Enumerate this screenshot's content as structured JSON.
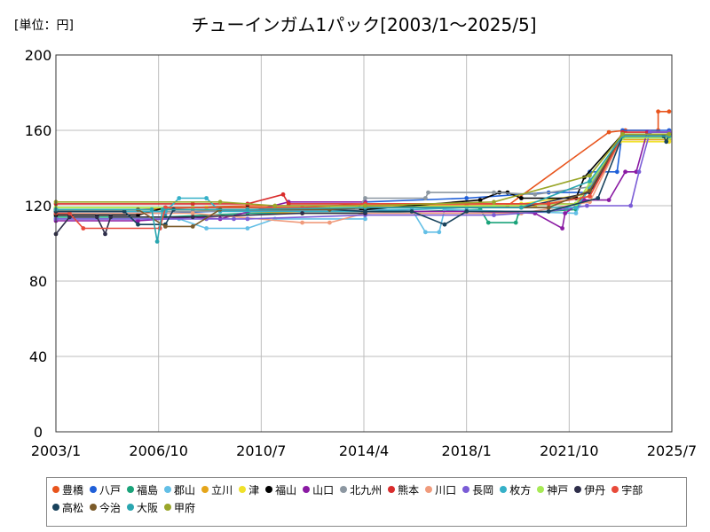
{
  "unit_label": "[単位：円]",
  "title": "チューインガム1パック[2003/1～2025/5]",
  "chart_data": {
    "type": "line",
    "title": "チューインガム1パック[2003/1～2025/5]",
    "ylabel": "[単位：円]",
    "xlim": [
      2003.0,
      2025.5
    ],
    "ylim": [
      0,
      200
    ],
    "yticks": [
      0,
      40,
      80,
      120,
      160,
      200
    ],
    "xtick_labels": [
      "2003/1",
      "2006/10",
      "2010/7",
      "2014/4",
      "2018/1",
      "2021/10",
      "2025/7"
    ],
    "grid": true,
    "legend_position": "bottom",
    "series": [
      {
        "name": "豊橋",
        "color": "#e8541c",
        "points": [
          [
            2003.0,
            118
          ],
          [
            2006.0,
            118
          ],
          [
            2010.0,
            120
          ],
          [
            2014.3,
            120
          ],
          [
            2018.0,
            120
          ],
          [
            2019.5,
            120
          ],
          [
            2023.2,
            159
          ],
          [
            2023.8,
            160
          ],
          [
            2025.0,
            160
          ],
          [
            2025.0,
            170
          ],
          [
            2025.4,
            170
          ]
        ]
      },
      {
        "name": "八戸",
        "color": "#1f5fd8",
        "points": [
          [
            2003.0,
            116
          ],
          [
            2007.0,
            116
          ],
          [
            2010.5,
            118
          ],
          [
            2014.3,
            118
          ],
          [
            2014.3,
            122
          ],
          [
            2018.0,
            124
          ],
          [
            2021.0,
            127
          ],
          [
            2022.5,
            127
          ],
          [
            2022.5,
            138
          ],
          [
            2023.5,
            138
          ],
          [
            2023.7,
            160
          ],
          [
            2025.4,
            160
          ]
        ]
      },
      {
        "name": "福島",
        "color": "#1aa37a",
        "points": [
          [
            2003.0,
            114
          ],
          [
            2007.0,
            114
          ],
          [
            2010.0,
            116
          ],
          [
            2014.3,
            116
          ],
          [
            2018.5,
            118
          ],
          [
            2018.8,
            111
          ],
          [
            2019.8,
            111
          ],
          [
            2019.9,
            116
          ],
          [
            2022.0,
            118
          ],
          [
            2022.6,
            133
          ],
          [
            2023.7,
            158
          ],
          [
            2025.4,
            158
          ]
        ]
      },
      {
        "name": "郡山",
        "color": "#63bfe6",
        "points": [
          [
            2003.0,
            113
          ],
          [
            2007.5,
            113
          ],
          [
            2008.5,
            108
          ],
          [
            2010.0,
            108
          ],
          [
            2011.0,
            113
          ],
          [
            2014.3,
            113
          ],
          [
            2014.3,
            118
          ],
          [
            2016.0,
            118
          ],
          [
            2016.5,
            106
          ],
          [
            2017.0,
            106
          ],
          [
            2017.2,
            118
          ],
          [
            2022.0,
            116
          ],
          [
            2022.5,
            131
          ],
          [
            2023.7,
            157
          ],
          [
            2025.4,
            157
          ]
        ]
      },
      {
        "name": "立川",
        "color": "#e5a51a",
        "points": [
          [
            2003.0,
            118
          ],
          [
            2008.0,
            118
          ],
          [
            2012.0,
            116
          ],
          [
            2014.2,
            116
          ],
          [
            2014.3,
            120
          ],
          [
            2020.5,
            120
          ],
          [
            2022.5,
            125
          ],
          [
            2023.6,
            155
          ],
          [
            2025.4,
            155
          ]
        ]
      },
      {
        "name": "津",
        "color": "#f0e12a",
        "points": [
          [
            2003.0,
            119
          ],
          [
            2008.5,
            119
          ],
          [
            2014.0,
            119
          ],
          [
            2014.3,
            121
          ],
          [
            2020.0,
            121
          ],
          [
            2022.3,
            126
          ],
          [
            2023.6,
            154
          ],
          [
            2025.4,
            154
          ]
        ]
      },
      {
        "name": "福山",
        "color": "#000000",
        "points": [
          [
            2003.0,
            115
          ],
          [
            2006.0,
            115
          ],
          [
            2007.0,
            119
          ],
          [
            2010.0,
            119
          ],
          [
            2014.3,
            118
          ],
          [
            2018.5,
            123
          ],
          [
            2019.2,
            127
          ],
          [
            2019.5,
            127
          ],
          [
            2020.0,
            124
          ],
          [
            2022.0,
            124
          ],
          [
            2022.3,
            135
          ],
          [
            2023.7,
            158
          ],
          [
            2025.4,
            158
          ]
        ]
      },
      {
        "name": "山口",
        "color": "#8a1aa3",
        "points": [
          [
            2003.0,
            112
          ],
          [
            2006.0,
            112
          ],
          [
            2008.0,
            114
          ],
          [
            2009.0,
            113
          ],
          [
            2011.5,
            122
          ],
          [
            2014.3,
            122
          ],
          [
            2014.3,
            117
          ],
          [
            2018.0,
            117
          ],
          [
            2020.5,
            116
          ],
          [
            2021.5,
            108
          ],
          [
            2021.6,
            116
          ],
          [
            2022.3,
            123
          ],
          [
            2023.2,
            123
          ],
          [
            2023.8,
            138
          ],
          [
            2024.2,
            138
          ],
          [
            2024.6,
            159
          ],
          [
            2025.4,
            159
          ]
        ]
      },
      {
        "name": "北九州",
        "color": "#8c97a1",
        "points": [
          [
            2003.0,
            117
          ],
          [
            2008.0,
            117
          ],
          [
            2014.0,
            118
          ],
          [
            2014.3,
            124
          ],
          [
            2016.5,
            124
          ],
          [
            2016.6,
            127
          ],
          [
            2019.0,
            127
          ],
          [
            2020.5,
            126
          ],
          [
            2022.5,
            130
          ],
          [
            2023.7,
            157
          ],
          [
            2025.4,
            157
          ]
        ]
      },
      {
        "name": "熊本",
        "color": "#d92c2c",
        "points": [
          [
            2003.0,
            121
          ],
          [
            2008.0,
            121
          ],
          [
            2010.0,
            121
          ],
          [
            2011.3,
            126
          ],
          [
            2011.5,
            121
          ],
          [
            2014.3,
            121
          ],
          [
            2019.0,
            121
          ],
          [
            2022.0,
            121
          ],
          [
            2022.6,
            130
          ],
          [
            2023.7,
            159
          ],
          [
            2025.4,
            159
          ]
        ]
      },
      {
        "name": "川口",
        "color": "#f09b7c",
        "points": [
          [
            2003.0,
            116
          ],
          [
            2008.0,
            116
          ],
          [
            2012.0,
            111
          ],
          [
            2013.0,
            111
          ],
          [
            2014.3,
            116
          ],
          [
            2020.0,
            116
          ],
          [
            2022.5,
            122
          ],
          [
            2023.7,
            157
          ],
          [
            2025.4,
            157
          ]
        ]
      },
      {
        "name": "長岡",
        "color": "#7a5cd6",
        "points": [
          [
            2003.0,
            113
          ],
          [
            2008.5,
            113
          ],
          [
            2009.5,
            113
          ],
          [
            2010.0,
            113
          ],
          [
            2014.3,
            115
          ],
          [
            2019.0,
            115
          ],
          [
            2021.0,
            117
          ],
          [
            2022.4,
            120
          ],
          [
            2024.0,
            120
          ],
          [
            2024.3,
            138
          ],
          [
            2024.7,
            159
          ],
          [
            2025.4,
            159
          ]
        ]
      },
      {
        "name": "枚方",
        "color": "#35b0c8",
        "points": [
          [
            2003.0,
            117
          ],
          [
            2007.0,
            117
          ],
          [
            2007.5,
            124
          ],
          [
            2008.5,
            124
          ],
          [
            2009.0,
            117
          ],
          [
            2014.3,
            117
          ],
          [
            2018.0,
            119
          ],
          [
            2022.0,
            119
          ],
          [
            2022.5,
            129
          ],
          [
            2023.7,
            156
          ],
          [
            2025.4,
            156
          ]
        ]
      },
      {
        "name": "神戸",
        "color": "#a7ea55",
        "points": [
          [
            2003.0,
            119
          ],
          [
            2008.0,
            119
          ],
          [
            2014.3,
            119
          ],
          [
            2019.0,
            120
          ],
          [
            2022.0,
            121
          ],
          [
            2022.5,
            132
          ],
          [
            2023.7,
            156
          ],
          [
            2025.4,
            156
          ]
        ]
      },
      {
        "name": "伊丹",
        "color": "#2e2e4a",
        "points": [
          [
            2003.0,
            105
          ],
          [
            2003.5,
            114
          ],
          [
            2004.5,
            114
          ],
          [
            2004.8,
            105
          ],
          [
            2005.0,
            114
          ],
          [
            2008.0,
            114
          ],
          [
            2012.0,
            116
          ],
          [
            2014.3,
            116
          ],
          [
            2014.3,
            119
          ],
          [
            2020.0,
            119
          ],
          [
            2022.5,
            127
          ],
          [
            2023.7,
            157
          ],
          [
            2025.4,
            157
          ]
        ]
      },
      {
        "name": "宇部",
        "color": "#e84a3a",
        "points": [
          [
            2003.0,
            116
          ],
          [
            2003.5,
            116
          ],
          [
            2004.0,
            108
          ],
          [
            2006.8,
            108
          ],
          [
            2007.0,
            119
          ],
          [
            2012.0,
            119
          ],
          [
            2014.3,
            121
          ],
          [
            2021.0,
            121
          ],
          [
            2022.5,
            125
          ],
          [
            2023.7,
            157
          ],
          [
            2025.4,
            157
          ]
        ]
      },
      {
        "name": "高松",
        "color": "#18425c",
        "points": [
          [
            2003.0,
            117
          ],
          [
            2005.5,
            117
          ],
          [
            2006.0,
            110
          ],
          [
            2007.0,
            110
          ],
          [
            2007.3,
            118
          ],
          [
            2013.0,
            118
          ],
          [
            2014.3,
            117
          ],
          [
            2016.0,
            117
          ],
          [
            2017.2,
            110
          ],
          [
            2018.0,
            117
          ],
          [
            2021.0,
            117
          ],
          [
            2022.8,
            124
          ],
          [
            2023.7,
            157
          ],
          [
            2025.2,
            157
          ],
          [
            2025.3,
            154
          ],
          [
            2025.4,
            158
          ]
        ]
      },
      {
        "name": "今治",
        "color": "#7a5a2a",
        "points": [
          [
            2003.0,
            118
          ],
          [
            2006.0,
            118
          ],
          [
            2007.0,
            109
          ],
          [
            2008.0,
            109
          ],
          [
            2009.0,
            118
          ],
          [
            2013.0,
            118
          ],
          [
            2014.3,
            119
          ],
          [
            2021.0,
            119
          ],
          [
            2022.5,
            128
          ],
          [
            2023.7,
            158
          ],
          [
            2025.4,
            158
          ]
        ]
      },
      {
        "name": "大阪",
        "color": "#2aa6b0",
        "points": [
          [
            2003.0,
            118
          ],
          [
            2006.5,
            118
          ],
          [
            2006.7,
            101
          ],
          [
            2006.9,
            118
          ],
          [
            2010.0,
            118
          ],
          [
            2014.3,
            119
          ],
          [
            2020.0,
            119
          ],
          [
            2022.5,
            133
          ],
          [
            2023.7,
            157
          ],
          [
            2025.4,
            157
          ]
        ]
      },
      {
        "name": "甲府",
        "color": "#9aa62a",
        "points": [
          [
            2003.0,
            122
          ],
          [
            2009.0,
            122
          ],
          [
            2011.0,
            120
          ],
          [
            2014.3,
            120
          ],
          [
            2019.0,
            122
          ],
          [
            2022.5,
            136
          ],
          [
            2023.7,
            158
          ],
          [
            2025.4,
            158
          ]
        ]
      }
    ]
  }
}
